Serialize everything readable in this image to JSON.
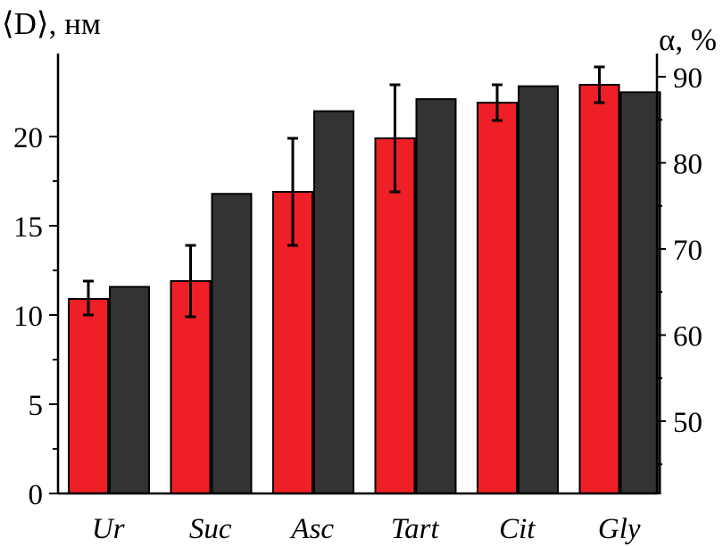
{
  "chart_data": {
    "type": "bar",
    "categories": [
      "Ur",
      "Suc",
      "Asc",
      "Tart",
      "Cit",
      "Gly"
    ],
    "left_axis": {
      "label": "⟨D⟩, нм",
      "ylim": [
        0,
        24
      ],
      "ticks": [
        0,
        5,
        10,
        15,
        20
      ],
      "tick_labels": [
        "0",
        "5",
        "10",
        "15",
        "20"
      ]
    },
    "right_axis": {
      "label": "α, %",
      "ylim": [
        40,
        90
      ],
      "ticks": [
        50,
        60,
        70,
        80,
        90
      ],
      "tick_labels": [
        "50",
        "60",
        "70",
        "80",
        "90"
      ]
    },
    "series": [
      {
        "name": "⟨D⟩",
        "axis": "left",
        "color": "#ee1f26",
        "values": [
          10.9,
          11.9,
          16.9,
          19.9,
          21.9,
          22.9
        ],
        "error_low": [
          10.0,
          9.9,
          13.9,
          16.9,
          20.9,
          21.9
        ],
        "error_high": [
          11.9,
          13.9,
          19.9,
          22.9,
          22.9,
          23.9
        ]
      },
      {
        "name": "α",
        "axis": "right",
        "color": "#333333",
        "values": [
          65.6,
          76.4,
          86.0,
          87.4,
          88.9,
          88.2
        ]
      }
    ],
    "grid": false,
    "legend": "none"
  }
}
